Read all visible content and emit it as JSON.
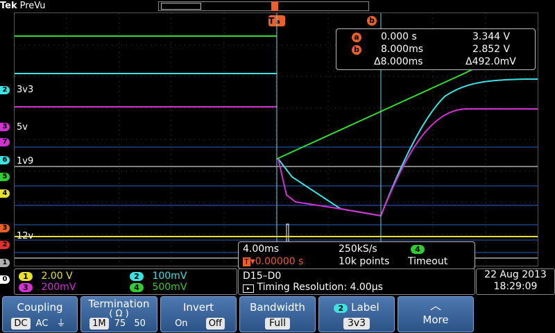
{
  "header": {
    "brand": "Tek",
    "state": "PreVu"
  },
  "trigger_marker": "T",
  "channel_labels": [
    {
      "num": "2",
      "text": "3v3",
      "color": "#3fe0e0"
    },
    {
      "num": "3",
      "text": "5v",
      "color": "#d033d0"
    },
    {
      "num": "1",
      "text": "12v",
      "color": "#e8e030"
    },
    {
      "num": "",
      "text": "1v9",
      "color": "#ffffff"
    }
  ],
  "left_markers": [
    "2",
    "3",
    "7",
    "6",
    "5",
    "4",
    "3",
    "2",
    "1",
    "0"
  ],
  "cursor_badges": {
    "a": "a",
    "b": "b"
  },
  "readout": {
    "a_time": "0.000 s",
    "a_volt": "3.344 V",
    "b_time": "8.000ms",
    "b_volt": "2.852 V",
    "delta_time": "Δ8.000ms",
    "delta_volt": "Δ492.0mV"
  },
  "acquisition": {
    "timebase": "4.00ms",
    "sample_rate": "250kS/s",
    "trigger_channel": "4",
    "trigger_mode": "Timeout",
    "trigger_position": "▾0.00000 s",
    "record_length": "10k points"
  },
  "channels": [
    {
      "num": "1",
      "scale": "2.00 V",
      "color": "#e8e030"
    },
    {
      "num": "2",
      "scale": "100mV",
      "color": "#3fe0e0"
    },
    {
      "num": "3",
      "scale": "200mV",
      "color": "#d033d0"
    },
    {
      "num": "4",
      "scale": "500mV",
      "color": "#33cc33"
    }
  ],
  "digital": {
    "bus": "D15–D0",
    "timing_resolution": "Timing Resolution: 4.00µs"
  },
  "datetime": {
    "date": "22 Aug 2013",
    "time": "18:29:09"
  },
  "buttons": {
    "coupling": {
      "label": "Coupling",
      "options": [
        "DC",
        "AC",
        "⏚"
      ],
      "selected": "DC"
    },
    "termination": {
      "label": "Termination",
      "sublabel": "( Ω )",
      "options": [
        "1M",
        "75",
        "50"
      ],
      "selected": "1M"
    },
    "invert": {
      "label": "Invert",
      "options": [
        "On",
        "Off"
      ],
      "selected": "Off"
    },
    "bandwidth": {
      "label": "Bandwidth",
      "value": "Full"
    },
    "label": {
      "channel": "2",
      "label": "Label",
      "value": "3v3"
    },
    "more": {
      "label": "More"
    }
  }
}
